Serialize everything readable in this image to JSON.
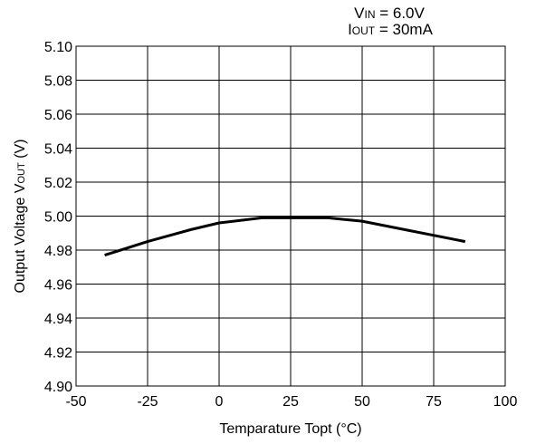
{
  "conditions": {
    "vin": {
      "symbol": "V",
      "sub": "IN",
      "value": "= 6.0V"
    },
    "iout": {
      "symbol": "I",
      "sub": "OUT",
      "value": "= 30mA"
    }
  },
  "chart_data": {
    "type": "line",
    "title": "",
    "xlabel": "Temparature Topt (°C)",
    "ylabel": "Output Voltage VOUT (V)",
    "ylabel_parts": {
      "main": "Output Voltage V",
      "sub": "OUT",
      "unit": " (V)"
    },
    "xlim": [
      -50,
      100
    ],
    "ylim": [
      4.9,
      5.1
    ],
    "x_ticks": [
      -50,
      -25,
      0,
      25,
      50,
      75,
      100
    ],
    "y_ticks": [
      4.9,
      4.92,
      4.94,
      4.96,
      4.98,
      5.0,
      5.02,
      5.04,
      5.06,
      5.08,
      5.1
    ],
    "x_tick_labels": [
      "-50",
      "-25",
      "0",
      "25",
      "50",
      "75",
      "100"
    ],
    "y_tick_labels": [
      "4.90",
      "4.92",
      "4.94",
      "4.96",
      "4.98",
      "5.00",
      "5.02",
      "5.04",
      "5.06",
      "5.08",
      "5.10"
    ],
    "grid": true,
    "series": [
      {
        "color": "#000000",
        "x": [
          -40,
          -25,
          -10,
          0,
          15,
          25,
          38,
          50,
          65,
          86
        ],
        "y": [
          4.977,
          4.985,
          4.992,
          4.996,
          4.999,
          4.999,
          4.999,
          4.997,
          4.992,
          4.985
        ]
      }
    ]
  }
}
